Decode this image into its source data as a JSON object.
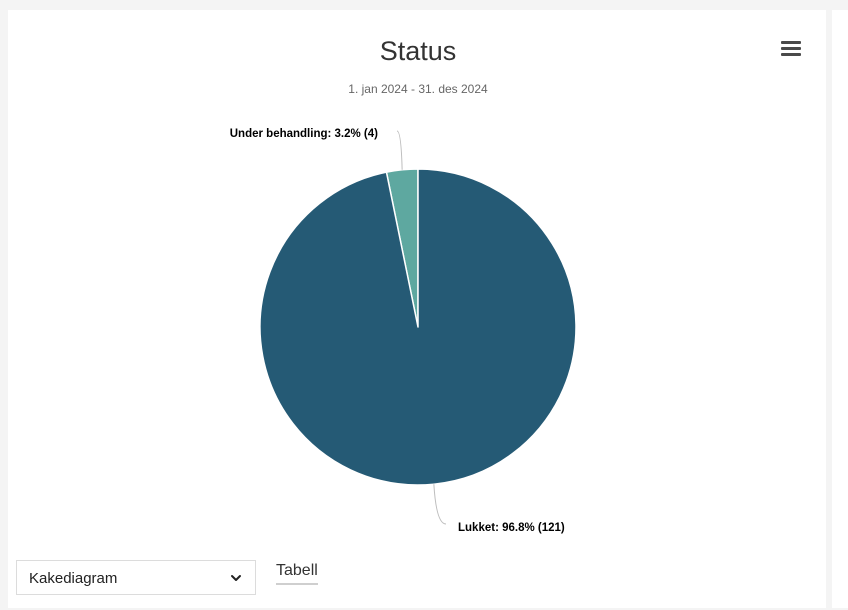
{
  "chart_data": {
    "type": "pie",
    "title": "Status",
    "subtitle": "1. jan 2024 - 31. des 2024",
    "slices": [
      {
        "name": "Under behandling",
        "value": 4,
        "percent_label": "3.2%",
        "color": "#5ea8a0"
      },
      {
        "name": "Lukket",
        "value": 121,
        "percent_label": "96.8%",
        "color": "#255a75"
      }
    ],
    "labels": [
      "Under behandling: 3.2% (4)",
      "Lukket: 96.8% (121)"
    ]
  },
  "controls": {
    "chart_type_selected": "Kakediagram",
    "table_link": "Tabell"
  },
  "icons": {
    "menu": "hamburger-menu-icon",
    "select_chevron": "chevron-down-icon"
  }
}
